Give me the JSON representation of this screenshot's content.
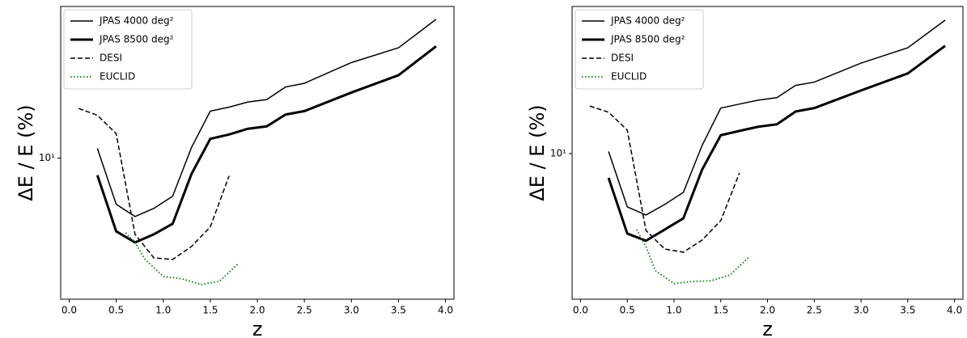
{
  "chart_data": [
    {
      "type": "line",
      "x_label": "z",
      "y_label": "ΔE / E (%)",
      "log_y": true,
      "legend": "upper left",
      "xlim": [
        -0.09,
        4.09
      ],
      "ylim": [
        2.63,
        42
      ],
      "xticks": [
        {
          "value": 0,
          "label": "0.0"
        },
        0.5,
        {
          "value": 1,
          "label": "1.0"
        },
        1.5,
        {
          "value": 2,
          "label": "2.0"
        },
        2.5,
        {
          "value": 3,
          "label": "3.0"
        },
        3.5,
        {
          "value": 4,
          "label": "4.0"
        }
      ],
      "yticks": [
        {
          "value": 10,
          "label": "10¹"
        }
      ],
      "series": [
        {
          "name": "JPAS 4000 deg²",
          "color": "#000000",
          "style": "solid",
          "x": [
            0.3,
            0.5,
            0.7,
            0.9,
            1.1,
            1.3,
            1.5,
            1.7,
            1.9,
            2.1,
            2.3,
            2.5,
            3.0,
            3.5,
            3.9
          ],
          "values": [
            10.96,
            6.46,
            5.75,
            6.21,
            6.97,
            11.05,
            15.6,
            16.2,
            17.0,
            17.4,
            19.6,
            20.3,
            24.7,
            28.4,
            37.2
          ]
        },
        {
          "name": "JPAS 8500 deg²",
          "color": "#000000",
          "style": "thick",
          "x": [
            0.3,
            0.5,
            0.7,
            0.9,
            1.1,
            1.3,
            1.5,
            1.7,
            1.9,
            2.1,
            2.3,
            2.5,
            3.0,
            3.5,
            3.9
          ],
          "values": [
            8.5,
            5.0,
            4.5,
            4.86,
            5.37,
            8.6,
            12.0,
            12.5,
            13.2,
            13.5,
            15.1,
            15.6,
            18.6,
            21.9,
            28.8
          ]
        },
        {
          "name": "DESI",
          "color": "#000000",
          "style": "dashed",
          "x": [
            0.1,
            0.3,
            0.5,
            0.7,
            0.9,
            1.1,
            1.3,
            1.5,
            1.7
          ],
          "values": [
            16.0,
            15.0,
            12.6,
            4.86,
            3.89,
            3.83,
            4.33,
            5.21,
            8.45
          ]
        },
        {
          "name": "EUCLID",
          "color": "#008000",
          "style": "dotted",
          "x": [
            0.6,
            0.7,
            0.8,
            1.0,
            1.2,
            1.4,
            1.6,
            1.8
          ],
          "values": [
            4.93,
            4.5,
            3.86,
            3.26,
            3.19,
            3.02,
            3.12,
            3.69
          ]
        }
      ]
    },
    {
      "type": "line",
      "x_label": "z",
      "y_label": "ΔE / E (%)",
      "log_y": true,
      "legend": "upper left",
      "xlim": [
        -0.09,
        4.09
      ],
      "ylim": [
        2.51,
        40.4
      ],
      "xticks": [
        {
          "value": 0,
          "label": "0.0"
        },
        0.5,
        {
          "value": 1,
          "label": "1.0"
        },
        1.5,
        {
          "value": 2,
          "label": "2.0"
        },
        2.5,
        {
          "value": 3,
          "label": "3.0"
        },
        3.5,
        {
          "value": 4,
          "label": "4.0"
        }
      ],
      "yticks": [
        {
          "value": 10,
          "label": "10¹"
        }
      ],
      "series": [
        {
          "name": "JPAS 4000 deg²",
          "color": "#000000",
          "style": "solid",
          "x": [
            0.3,
            0.5,
            0.7,
            0.9,
            1.1,
            1.3,
            1.5,
            1.7,
            1.9,
            2.1,
            2.3,
            2.5,
            3.0,
            3.5,
            3.9
          ],
          "values": [
            10.2,
            6.03,
            5.58,
            6.17,
            6.92,
            10.8,
            15.4,
            16.0,
            16.6,
            17.0,
            19.1,
            19.7,
            23.6,
            27.3,
            35.5
          ]
        },
        {
          "name": "JPAS 8500 deg²",
          "color": "#000000",
          "style": "thick",
          "x": [
            0.3,
            0.5,
            0.7,
            0.9,
            1.1,
            1.3,
            1.5,
            1.7,
            1.9,
            2.1,
            2.3,
            2.5,
            3.0,
            3.5,
            3.9
          ],
          "values": [
            7.94,
            4.68,
            4.37,
            4.86,
            5.41,
            8.58,
            11.9,
            12.4,
            12.9,
            13.2,
            14.9,
            15.4,
            18.2,
            21.4,
            27.8
          ]
        },
        {
          "name": "DESI",
          "color": "#000000",
          "style": "dashed",
          "x": [
            0.1,
            0.3,
            0.5,
            0.7,
            0.9,
            1.1,
            1.3,
            1.5,
            1.7
          ],
          "values": [
            15.7,
            14.8,
            12.5,
            4.82,
            4.04,
            3.92,
            4.4,
            5.29,
            8.32
          ]
        },
        {
          "name": "EUCLID",
          "color": "#008000",
          "style": "dotted",
          "x": [
            0.6,
            0.7,
            0.8,
            1.0,
            1.2,
            1.4,
            1.6,
            1.8
          ],
          "values": [
            4.86,
            4.14,
            3.29,
            2.91,
            2.97,
            2.99,
            3.16,
            3.74
          ]
        }
      ]
    }
  ]
}
